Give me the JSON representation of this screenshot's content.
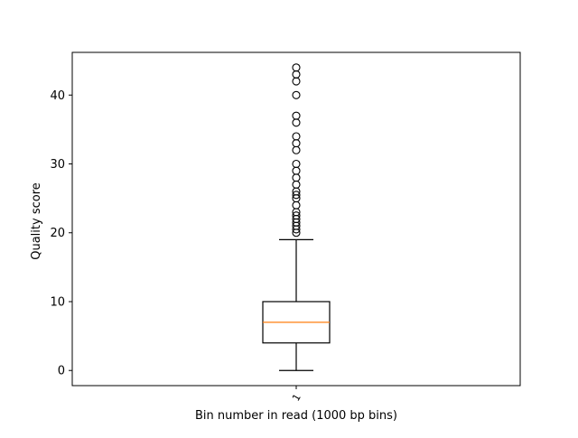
{
  "chart_data": {
    "type": "box",
    "title": "",
    "xlabel": "Bin number in read (1000 bp bins)",
    "ylabel": "Quality score",
    "categories": [
      "1"
    ],
    "ylim": [
      -2.2,
      46.2
    ],
    "yticks": [
      0,
      10,
      20,
      30,
      40
    ],
    "grid": false,
    "boxes": [
      {
        "label": "1",
        "whisker_low": 0,
        "q1": 4,
        "median": 7,
        "q3": 10,
        "whisker_high": 19,
        "outliers": [
          20,
          20.5,
          21,
          21.5,
          22,
          22.5,
          23,
          24,
          25,
          25.5,
          26,
          27,
          28,
          29,
          30,
          32,
          33,
          34,
          36,
          37,
          40,
          42,
          43,
          44
        ]
      }
    ],
    "colors": {
      "box": "#000000",
      "median": "#ff7f0e",
      "outlier_edge": "#000000"
    }
  }
}
